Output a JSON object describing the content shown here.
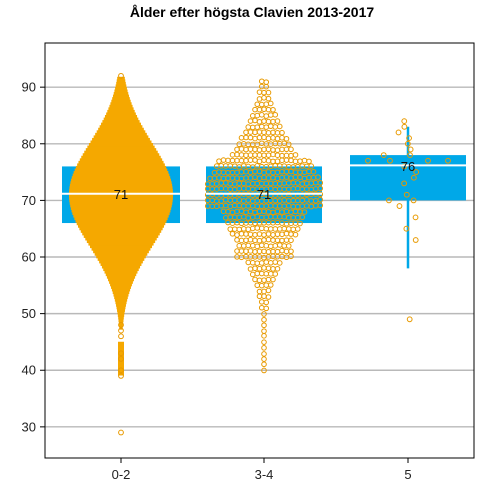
{
  "chart_data": {
    "type": "box",
    "title": "Ålder efter högsta Clavien 2013-2017",
    "xlabel": "",
    "ylabel": "",
    "categories": [
      "0-2",
      "3-4",
      "5"
    ],
    "ylim": [
      24.5,
      97.8
    ],
    "yticks": [
      30,
      40,
      50,
      60,
      70,
      80,
      90
    ],
    "grid": "horizontal",
    "boxes": [
      {
        "category": "0-2",
        "q1": 66,
        "median": 71,
        "q3": 76,
        "median_label": "71"
      },
      {
        "category": "3-4",
        "q1": 66,
        "median": 71,
        "q3": 76,
        "median_label": "71"
      },
      {
        "category": "5",
        "q1": 70,
        "median": 76,
        "q3": 78,
        "median_label": "76",
        "whisker_low": 58,
        "whisker_high": 83
      }
    ],
    "points": [
      {
        "category": "0-2",
        "style": "dense",
        "min": 29,
        "max": 92,
        "note": "beeswarm of individual ages"
      },
      {
        "category": "3-4",
        "style": "ring",
        "min": 40,
        "max": 91
      },
      {
        "category": "5",
        "style": "ring",
        "values": [
          49,
          63,
          65,
          67,
          69,
          70,
          70,
          71,
          73,
          74,
          75,
          76,
          77,
          77,
          77,
          77,
          78,
          78,
          79,
          80,
          81,
          82,
          83,
          84
        ]
      }
    ],
    "colors": {
      "box": "#00a8e8",
      "points_fill": "#f5a800",
      "points_edge": "#e89a00",
      "grid": "#b9b9b9",
      "median_line": "#ffffff"
    }
  }
}
